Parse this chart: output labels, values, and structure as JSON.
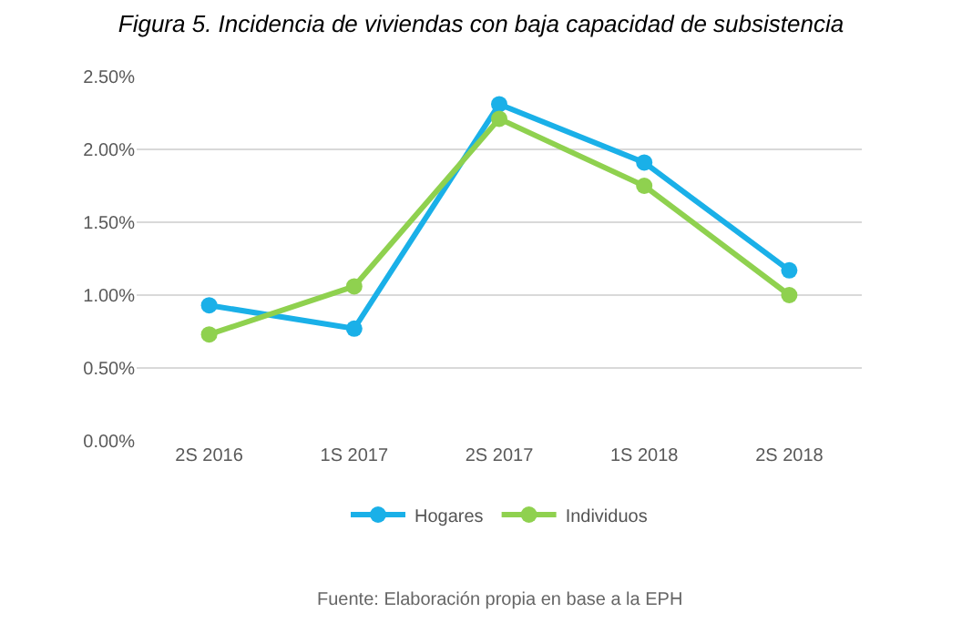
{
  "chart_data": {
    "type": "line",
    "title": "Figura 5. Incidencia de viviendas con baja capacidad de subsistencia",
    "categories": [
      "2S 2016",
      "1S 2017",
      "2S 2017",
      "1S 2018",
      "2S 2018"
    ],
    "series": [
      {
        "name": "Hogares",
        "color": "#1ab0e8",
        "values": [
          0.93,
          0.77,
          2.31,
          1.91,
          1.17
        ]
      },
      {
        "name": "Individuos",
        "color": "#8fd14f",
        "values": [
          0.73,
          1.06,
          2.21,
          1.75,
          1.0
        ]
      }
    ],
    "ylim": [
      0,
      2.5
    ],
    "yticks": [
      {
        "value": 0,
        "label": "0.00%"
      },
      {
        "value": 0.5,
        "label": "0.50%"
      },
      {
        "value": 1,
        "label": "1.00%"
      },
      {
        "value": 1.5,
        "label": "1.50%"
      },
      {
        "value": 2,
        "label": "2.00%"
      },
      {
        "value": 2.5,
        "label": "2.50%"
      }
    ],
    "grid": "y",
    "legend": "bottom",
    "marker": "circle",
    "line_style": "solid",
    "annotations": [
      "Fuente: Elaboración propia en base a la EPH"
    ]
  }
}
